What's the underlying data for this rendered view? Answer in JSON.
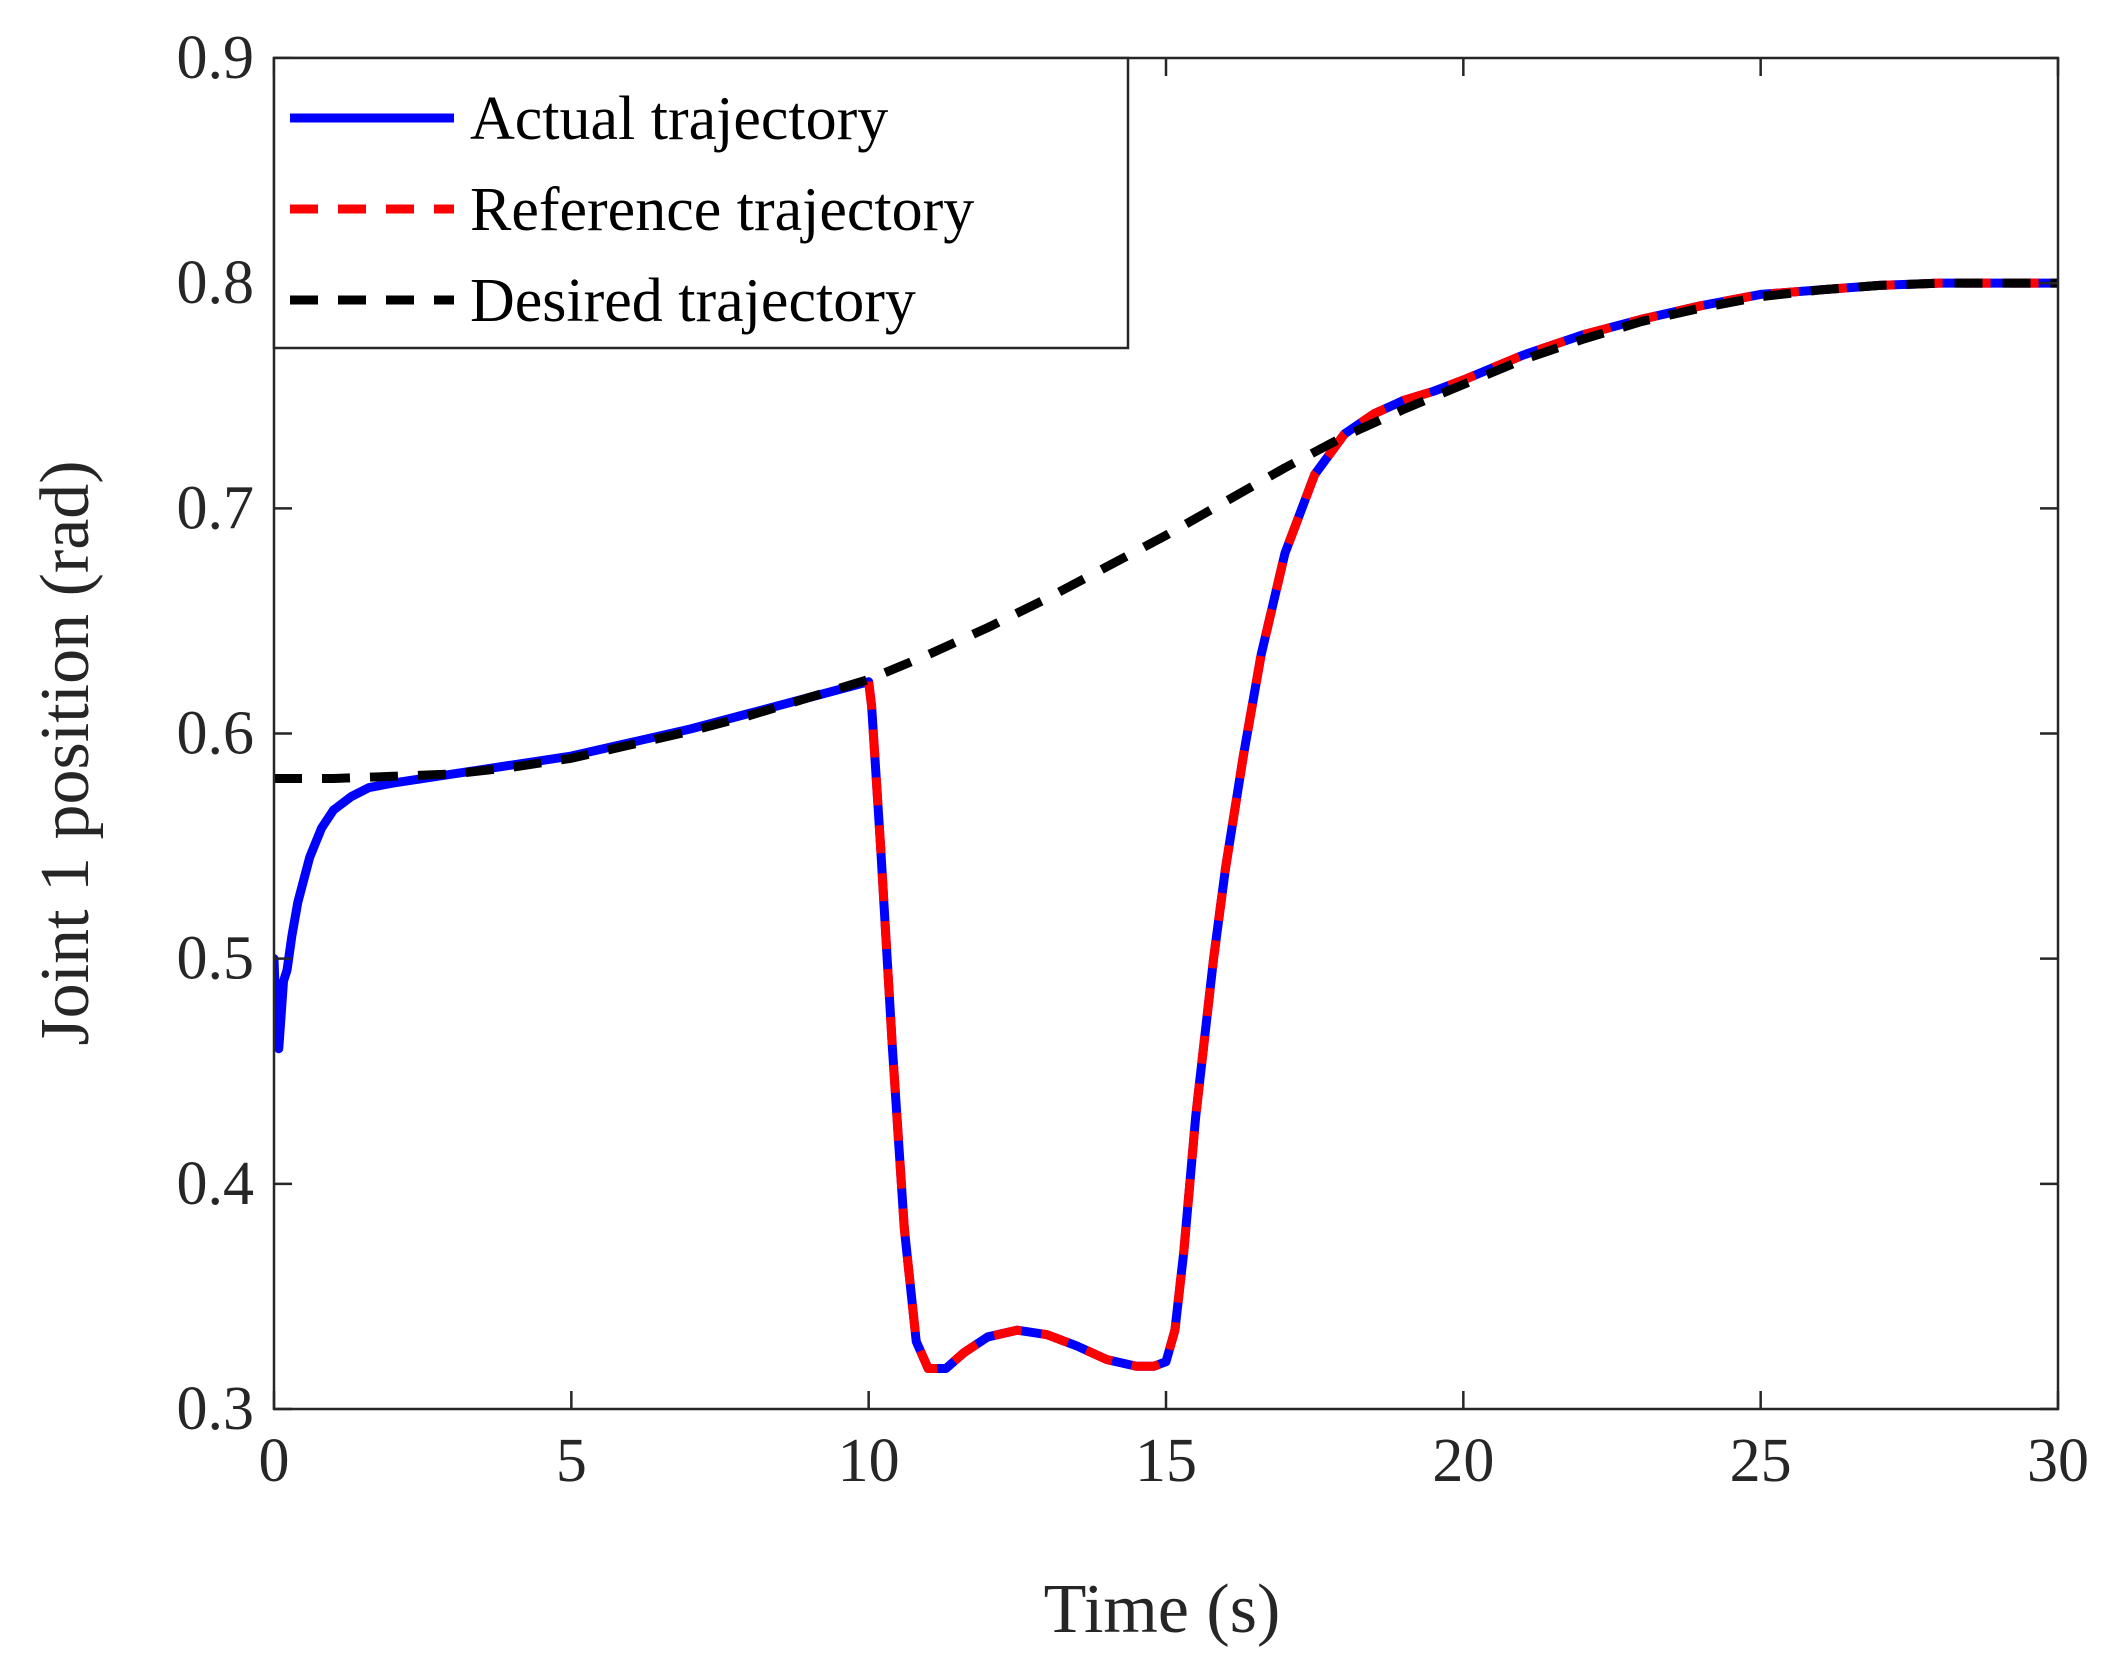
{
  "chart_data": {
    "type": "line",
    "title": "",
    "xlabel": "Time (s)",
    "ylabel": "Joint 1 position (rad)",
    "xlim": [
      0,
      30
    ],
    "ylim": [
      0.3,
      0.9
    ],
    "xticks": [
      0,
      5,
      10,
      15,
      20,
      25,
      30
    ],
    "yticks": [
      0.3,
      0.4,
      0.5,
      0.6,
      0.7,
      0.8,
      0.9
    ],
    "xtick_labels": [
      "0",
      "5",
      "10",
      "15",
      "20",
      "25",
      "30"
    ],
    "ytick_labels": [
      "0.3",
      "0.4",
      "0.5",
      "0.6",
      "0.7",
      "0.8",
      "0.9"
    ],
    "grid": false,
    "legend_position": "top-left",
    "series": [
      {
        "name": "Actual trajectory",
        "color": "#0000ff",
        "style": "solid",
        "x": [
          0,
          0.04,
          0.08,
          0.12,
          0.16,
          0.22,
          0.3,
          0.4,
          0.6,
          0.8,
          1.0,
          1.3,
          1.6,
          2.0,
          2.5,
          3.0,
          3.5,
          4.0,
          5.0,
          6.0,
          7.0,
          8.0,
          9.0,
          10.0,
          10.05,
          10.2,
          10.4,
          10.6,
          10.8,
          11.0,
          11.3,
          11.6,
          12.0,
          12.5,
          13.0,
          13.5,
          14.0,
          14.5,
          14.8,
          15.0,
          15.15,
          15.3,
          15.5,
          15.8,
          16.0,
          16.3,
          16.6,
          17.0,
          17.5,
          18.0,
          18.5,
          19.0,
          19.5,
          20.0,
          21.0,
          22.0,
          23.0,
          24.0,
          25.0,
          26.0,
          27.0,
          28.0,
          29.0,
          30.0
        ],
        "y": [
          0.5,
          0.47,
          0.46,
          0.475,
          0.49,
          0.495,
          0.51,
          0.525,
          0.545,
          0.558,
          0.566,
          0.572,
          0.576,
          0.578,
          0.58,
          0.582,
          0.584,
          0.586,
          0.59,
          0.596,
          0.602,
          0.609,
          0.616,
          0.623,
          0.612,
          0.55,
          0.46,
          0.38,
          0.33,
          0.318,
          0.318,
          0.325,
          0.332,
          0.335,
          0.333,
          0.328,
          0.322,
          0.319,
          0.319,
          0.321,
          0.335,
          0.37,
          0.43,
          0.5,
          0.54,
          0.59,
          0.635,
          0.68,
          0.715,
          0.733,
          0.742,
          0.748,
          0.752,
          0.757,
          0.768,
          0.777,
          0.784,
          0.79,
          0.795,
          0.797,
          0.799,
          0.8,
          0.8,
          0.8
        ]
      },
      {
        "name": "Reference trajectory",
        "color": "#ff0000",
        "style": "dashed",
        "x": [
          10.0,
          10.05,
          10.2,
          10.4,
          10.6,
          10.8,
          11.0,
          11.3,
          11.6,
          12.0,
          12.5,
          13.0,
          13.5,
          14.0,
          14.5,
          14.8,
          15.0,
          15.15,
          15.3,
          15.5,
          15.8,
          16.0,
          16.3,
          16.6,
          17.0,
          17.5,
          18.0,
          18.5,
          19.0,
          19.5,
          20.0,
          21.0,
          22.0,
          23.0,
          24.0,
          25.0,
          26.0,
          27.0,
          28.0,
          29.0,
          30.0
        ],
        "y": [
          0.623,
          0.612,
          0.55,
          0.46,
          0.38,
          0.33,
          0.318,
          0.318,
          0.325,
          0.332,
          0.335,
          0.333,
          0.328,
          0.322,
          0.319,
          0.319,
          0.321,
          0.335,
          0.37,
          0.43,
          0.5,
          0.54,
          0.59,
          0.635,
          0.68,
          0.715,
          0.733,
          0.742,
          0.748,
          0.752,
          0.757,
          0.768,
          0.777,
          0.784,
          0.79,
          0.795,
          0.797,
          0.799,
          0.8,
          0.8,
          0.8
        ]
      },
      {
        "name": "Desired trajectory",
        "color": "#000000",
        "style": "dashed",
        "x": [
          0,
          1,
          2,
          3,
          4,
          5,
          6,
          7,
          8,
          9,
          10,
          11,
          12,
          13,
          14,
          15,
          16,
          17,
          18,
          19,
          20,
          21,
          22,
          23,
          24,
          25,
          26,
          27,
          28,
          29,
          30
        ],
        "y": [
          0.58,
          0.58,
          0.581,
          0.582,
          0.585,
          0.589,
          0.595,
          0.601,
          0.608,
          0.616,
          0.624,
          0.635,
          0.647,
          0.66,
          0.674,
          0.688,
          0.703,
          0.718,
          0.732,
          0.744,
          0.755,
          0.766,
          0.775,
          0.783,
          0.789,
          0.794,
          0.797,
          0.799,
          0.8,
          0.8,
          0.8
        ]
      }
    ]
  }
}
